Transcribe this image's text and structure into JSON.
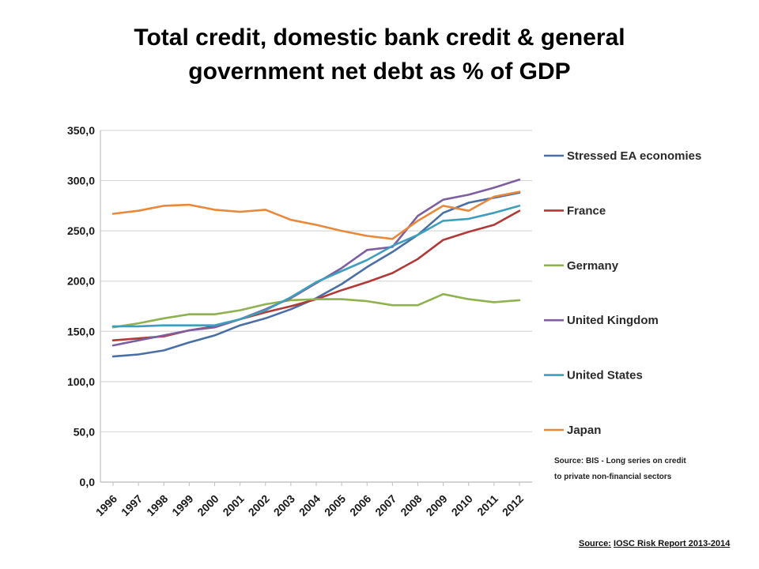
{
  "title": {
    "line1": "Total credit, domestic bank credit & general",
    "line2": "government net debt as % of GDP"
  },
  "chart_data": {
    "type": "line",
    "title": "Total credit, domestic bank credit & general government net debt as % of GDP",
    "xlabel": "",
    "ylabel": "",
    "ylim": [
      0,
      350
    ],
    "yticks": [
      "0,0",
      "50,0",
      "100,0",
      "150,0",
      "200,0",
      "250,0",
      "300,0",
      "350,0"
    ],
    "x": [
      "1996",
      "1997",
      "1998",
      "1999",
      "2000",
      "2001",
      "2002",
      "2003",
      "2004",
      "2005",
      "2006",
      "2007",
      "2008",
      "2009",
      "2010",
      "2011",
      "2012"
    ],
    "grid": true,
    "legend_position": "right",
    "series": [
      {
        "name": "Stressed EA economies",
        "color": "#4a6fa5",
        "values": [
          125,
          127,
          131,
          139,
          146,
          156,
          163,
          172,
          183,
          197,
          214,
          229,
          246,
          268,
          278,
          283,
          288
        ]
      },
      {
        "name": "France",
        "color": "#b03a37",
        "values": [
          141,
          143,
          145,
          151,
          155,
          162,
          169,
          175,
          182,
          191,
          199,
          208,
          222,
          241,
          249,
          256,
          270
        ]
      },
      {
        "name": "Germany",
        "color": "#8fb150",
        "values": [
          154,
          158,
          163,
          167,
          167,
          171,
          177,
          181,
          182,
          182,
          180,
          176,
          176,
          187,
          182,
          179,
          181
        ]
      },
      {
        "name": "United Kingdom",
        "color": "#7e5ea1",
        "values": [
          136,
          141,
          146,
          151,
          154,
          162,
          172,
          183,
          198,
          213,
          231,
          234,
          265,
          281,
          286,
          293,
          301
        ]
      },
      {
        "name": "United States",
        "color": "#3d9fbc",
        "values": [
          155,
          155,
          156,
          156,
          156,
          162,
          171,
          184,
          199,
          210,
          221,
          235,
          246,
          260,
          262,
          268,
          275
        ]
      },
      {
        "name": "Japan",
        "color": "#e8883a",
        "values": [
          267,
          270,
          275,
          276,
          271,
          269,
          271,
          261,
          256,
          250,
          245,
          242,
          260,
          275,
          270,
          284,
          289
        ]
      }
    ],
    "source_note": [
      "Source: BIS - Long series on credit",
      "to private non-financial sectors"
    ]
  },
  "report_source": {
    "prefix": "Source:",
    "text": "IOSC Risk Report 2013-2014"
  }
}
